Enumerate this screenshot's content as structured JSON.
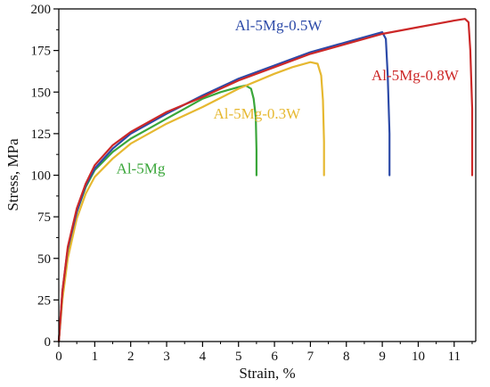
{
  "chart_data": {
    "type": "line",
    "xlabel": "Strain, %",
    "ylabel": "Stress, MPa",
    "xlim": [
      0,
      11.6
    ],
    "ylim": [
      0,
      200
    ],
    "x_ticks": [
      0,
      1,
      2,
      3,
      4,
      5,
      6,
      7,
      8,
      9,
      10,
      11
    ],
    "y_ticks": [
      0,
      25,
      50,
      75,
      100,
      125,
      150,
      175,
      200
    ],
    "grid": false,
    "legend": "none",
    "series": [
      {
        "name": "Al-5Mg",
        "color": "#3aa63a",
        "x": [
          0,
          0.1,
          0.25,
          0.5,
          0.75,
          1.0,
          1.5,
          2.0,
          2.5,
          3.0,
          3.5,
          4.0,
          4.5,
          5.0,
          5.2,
          5.35,
          5.42,
          5.48,
          5.5,
          5.5
        ],
        "y": [
          0,
          28,
          55,
          78,
          93,
          103,
          114,
          122,
          128,
          134,
          140,
          146,
          150,
          153,
          154,
          152,
          146,
          135,
          115,
          100
        ]
      },
      {
        "name": "Al-5Mg-0.3W",
        "color": "#e6b830",
        "x": [
          0,
          0.1,
          0.25,
          0.5,
          0.75,
          1.0,
          1.5,
          2.0,
          3.0,
          4.0,
          5.0,
          6.0,
          6.5,
          7.0,
          7.2,
          7.3,
          7.35,
          7.38,
          7.38
        ],
        "y": [
          0,
          25,
          50,
          74,
          89,
          99,
          110,
          119,
          131,
          141,
          152,
          161,
          165,
          168,
          167,
          160,
          145,
          120,
          100
        ]
      },
      {
        "name": "Al-5Mg-0.5W",
        "color": "#2c4aa8",
        "x": [
          0,
          0.1,
          0.25,
          0.5,
          0.75,
          1.0,
          1.5,
          2.0,
          3.0,
          4.0,
          5.0,
          6.0,
          7.0,
          8.0,
          8.5,
          9.0,
          9.1,
          9.15,
          9.2,
          9.2
        ],
        "y": [
          0,
          30,
          56,
          78,
          94,
          104,
          116,
          125,
          137,
          148,
          158,
          166,
          174,
          180,
          183,
          186,
          182,
          160,
          125,
          100
        ]
      },
      {
        "name": "Al-5Mg-0.8W",
        "color": "#cc2828",
        "x": [
          0,
          0.1,
          0.25,
          0.5,
          0.75,
          1.0,
          1.5,
          2.0,
          3.0,
          4.0,
          5.0,
          6.0,
          7.0,
          8.0,
          9.0,
          10.0,
          10.5,
          11.0,
          11.3,
          11.4,
          11.45,
          11.5,
          11.5
        ],
        "y": [
          0,
          30,
          57,
          80,
          95,
          106,
          118,
          126,
          138,
          147,
          157,
          165,
          173,
          179,
          185,
          189,
          191,
          193,
          194,
          192,
          175,
          140,
          100
        ]
      }
    ],
    "labels": [
      {
        "text": "Al-5Mg",
        "series": 0,
        "x": 1.6,
        "y": 101
      },
      {
        "text": "Al-5Mg-0.3W",
        "series": 1,
        "x": 4.3,
        "y": 134
      },
      {
        "text": "Al-5Mg-0.5W",
        "series": 2,
        "x": 4.9,
        "y": 187
      },
      {
        "text": "Al-5Mg-0.8W",
        "series": 3,
        "x": 8.7,
        "y": 157
      }
    ]
  }
}
